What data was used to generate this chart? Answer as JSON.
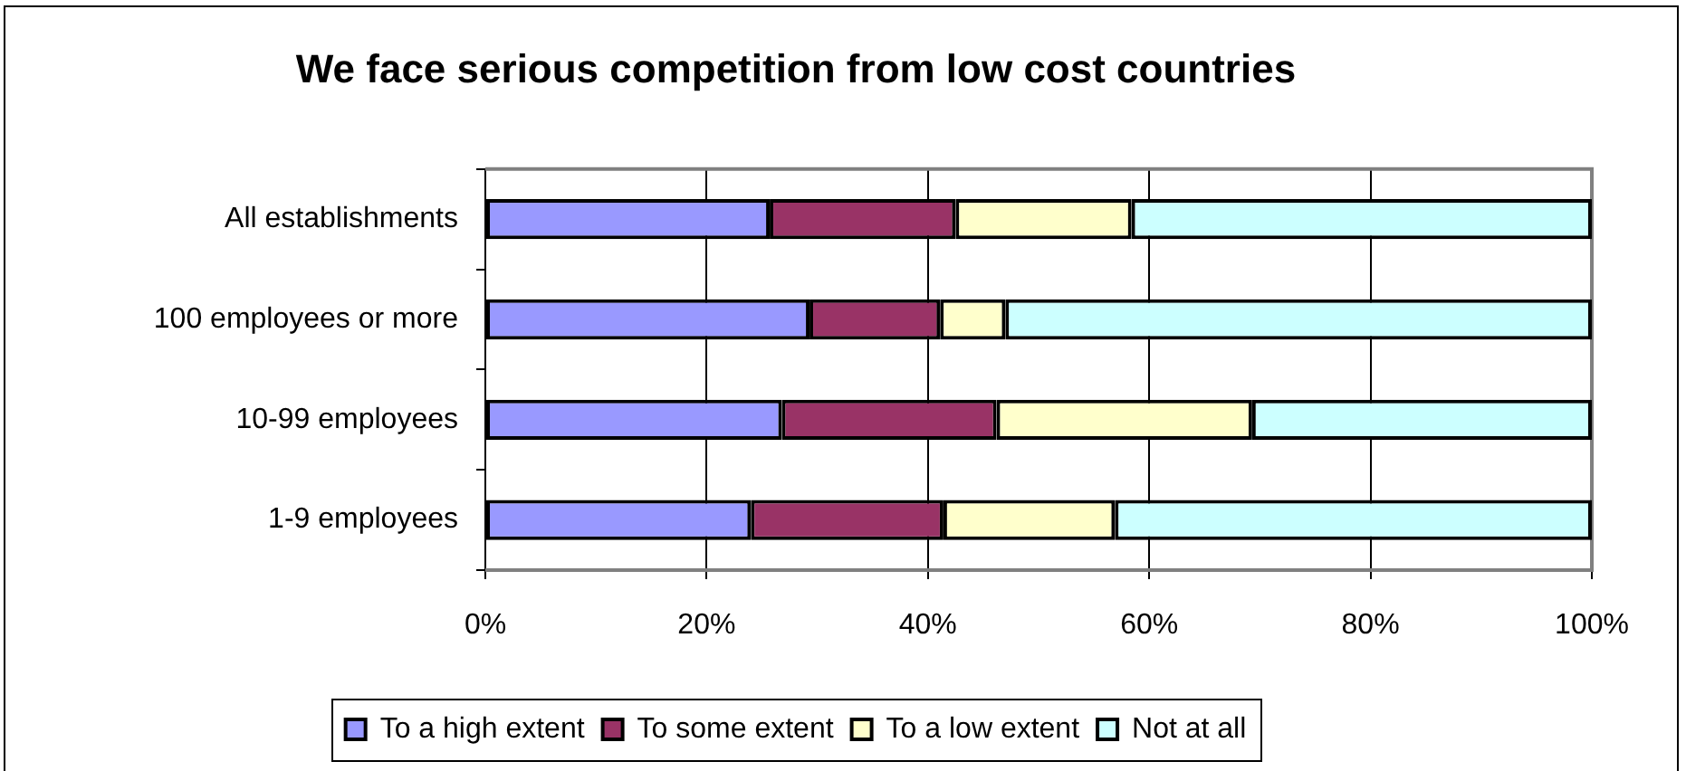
{
  "chart_data": {
    "type": "bar",
    "orientation": "horizontal",
    "stacked": true,
    "title": "We face serious competition from low cost countries",
    "categories": [
      "All establishments",
      "100 employees or more",
      "10-99 employees",
      "1-9 employees"
    ],
    "series": [
      {
        "name": "To a high extent",
        "color": "#9999ff",
        "values": [
          25.7,
          29.3,
          26.8,
          24.0
        ]
      },
      {
        "name": "To some extent",
        "color": "#993366",
        "values": [
          16.8,
          11.8,
          19.4,
          17.4
        ]
      },
      {
        "name": "To a low extent",
        "color": "#ffffcc",
        "values": [
          15.9,
          5.9,
          23.1,
          15.5
        ]
      },
      {
        "name": "Not at all",
        "color": "#ccffff",
        "values": [
          41.6,
          53.0,
          30.7,
          43.1
        ]
      }
    ],
    "xlim": [
      0,
      100
    ],
    "xticks": [
      {
        "value": 0,
        "label": "0%"
      },
      {
        "value": 20,
        "label": "20%"
      },
      {
        "value": 40,
        "label": "40%"
      },
      {
        "value": 60,
        "label": "60%"
      },
      {
        "value": 80,
        "label": "80%"
      },
      {
        "value": 100,
        "label": "100%"
      }
    ],
    "grid": "x",
    "legend": "bottom"
  }
}
